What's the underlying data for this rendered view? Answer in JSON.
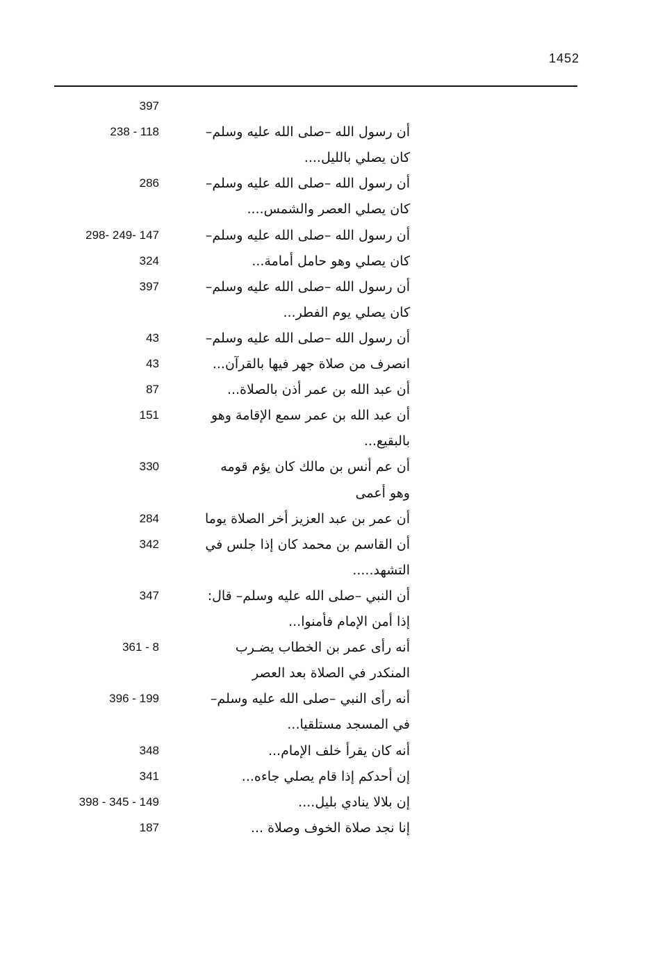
{
  "page_number": "1452",
  "rows": [
    {
      "text": "",
      "pages": "397"
    },
    {
      "text": "أن رسول الله –صلى الله عليه وسلم–",
      "pages": "238  - 118"
    },
    {
      "text": "كان يصلي بالليل....",
      "pages": ""
    },
    {
      "text": "أن رسول الله –صلى الله عليه وسلم–",
      "pages": "286"
    },
    {
      "text": "كان يصلي العصر والشمس....",
      "pages": ""
    },
    {
      "text": "أن رسول الله –صلى الله عليه وسلم–",
      "pages": "298- 249- 147"
    },
    {
      "text": "كان يصلي وهو حامل أمامة...",
      "pages": "324"
    },
    {
      "text": "أن رسول الله –صلى الله عليه وسلم–",
      "pages": "397"
    },
    {
      "text": "كان يصلي يوم الفطر...",
      "pages": ""
    },
    {
      "text": "أن رسول الله –صلى الله عليه وسلم–",
      "pages": "43"
    },
    {
      "text": "انصرف من صلاة جهر فيها بالقرآن...",
      "pages": "43"
    },
    {
      "text": "أن عبد الله بن عمر أذن بالصلاة...",
      "pages": "87"
    },
    {
      "text": "أن عبد الله بن عمر سمع الإقامة وهو",
      "pages": "151"
    },
    {
      "text": "بالبقيع...",
      "pages": ""
    },
    {
      "text": "أن عم أنس بن مالك كان يؤم قومه",
      "pages": "330"
    },
    {
      "text": "وهو أعمى",
      "pages": ""
    },
    {
      "text": "أن عمر بن عبد العزيز أخر الصلاة يوما",
      "pages": "284"
    },
    {
      "text": "أن القاسم بن محمد كان إذا جلس في",
      "pages": "342"
    },
    {
      "text": "التشهد.....",
      "pages": ""
    },
    {
      "text": "أن النبي –صلى الله عليه وسلم– قال:",
      "pages": "347"
    },
    {
      "text": "إذا أمن الإمام فأمنوا...",
      "pages": ""
    },
    {
      "text": "أنه رأى عمر بن الخطاب يضـرب",
      "pages": "361 - 8"
    },
    {
      "text": "المنكدر في الصلاة بعد العصر",
      "pages": ""
    },
    {
      "text": "أنه رأى النبي –صلى الله عليه وسلم–",
      "pages": "396 - 199"
    },
    {
      "text": "في المسجد مستلقيا...",
      "pages": ""
    },
    {
      "text": "أنه كان يقرأ خلف الإمام...",
      "pages": "348"
    },
    {
      "text": "إن أحدكم إذا قام يصلي جاءه...",
      "pages": "341"
    },
    {
      "text": "إن بلالا ينادي بليل....",
      "pages": "398 - 345 - 149"
    },
    {
      "text": "إنا نجد صلاة الخوف وصلاة ...",
      "pages": "187"
    }
  ]
}
